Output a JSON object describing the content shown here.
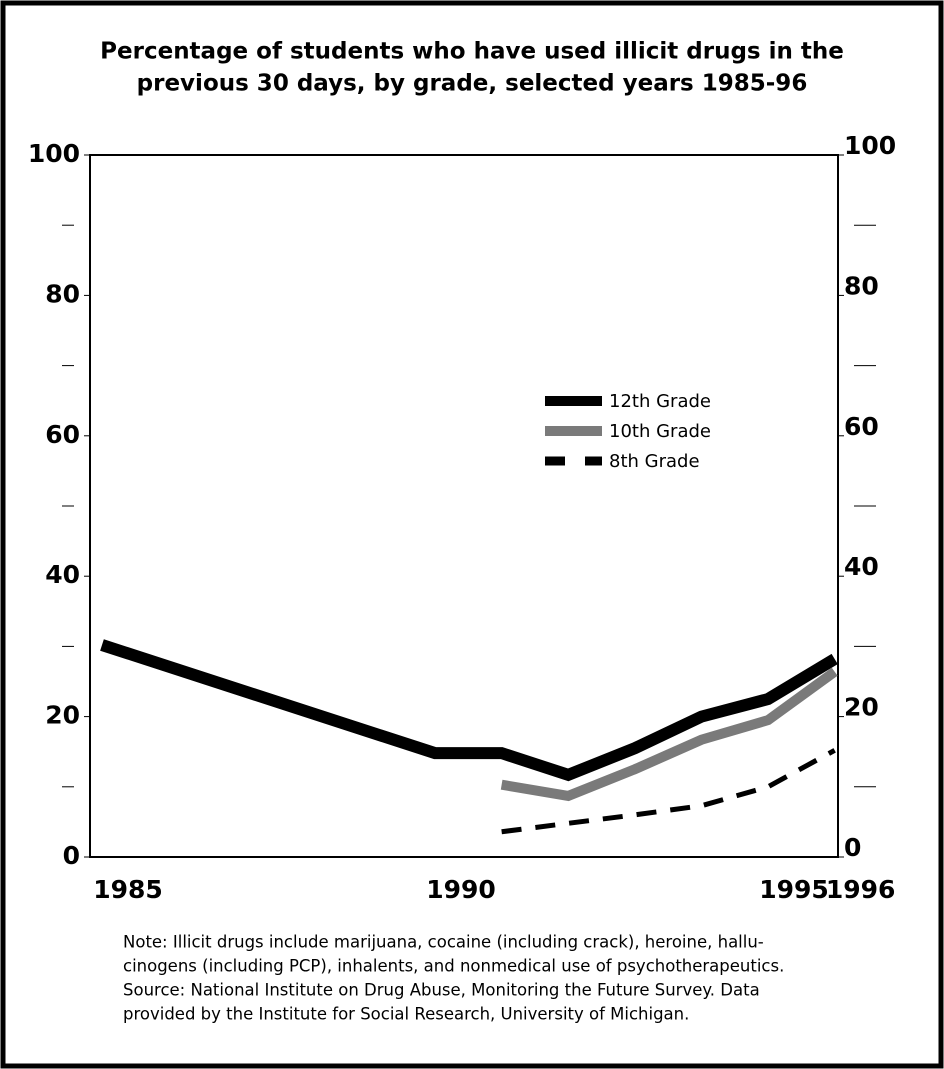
{
  "chart_data": {
    "type": "line",
    "title": [
      "Percentage of students who have used illicit drugs in the",
      "previous 30 days, by grade, selected years 1985-96"
    ],
    "x": [
      1985,
      1990,
      1991,
      1992,
      1993,
      1994,
      1995,
      1996
    ],
    "series": [
      {
        "name": "12th Grade",
        "color": "#000000",
        "dashed": false,
        "values": [
          30.2,
          14.8,
          14.8,
          11.7,
          15.5,
          20,
          22.5,
          28.2
        ]
      },
      {
        "name": "10th Grade",
        "color": "#7a7a7a",
        "dashed": false,
        "values": [
          null,
          null,
          10.3,
          8.7,
          12.5,
          16.7,
          19.5,
          26.4
        ]
      },
      {
        "name": "8th Grade",
        "color": "#000000",
        "dashed": true,
        "values": [
          null,
          null,
          3.6,
          4.8,
          6,
          7.3,
          10,
          15.2
        ]
      }
    ],
    "xlim": [
      1984.82,
      1996.05
    ],
    "xticks": [
      1985,
      1990,
      1995,
      1996
    ],
    "ylim": [
      0,
      100
    ],
    "yticks": [
      0,
      20,
      40,
      60,
      80,
      100
    ],
    "yminorticks": [
      10,
      30,
      50,
      70,
      90
    ],
    "y2lim": [
      0,
      100
    ],
    "y2ticks": [
      0,
      20,
      40,
      60,
      80,
      100
    ],
    "grid": false,
    "legend": "center-right",
    "note": [
      "Note: Illicit drugs include marijuana, cocaine (including crack), heroine, hallu-",
      "cinogens (including PCP), inhalents, and nonmedical use of psychotherapeutics.",
      "Source: National Institute on Drug Abuse, Monitoring the Future Survey. Data",
      "provided by the Institute for Social Research, University of Michigan."
    ]
  }
}
